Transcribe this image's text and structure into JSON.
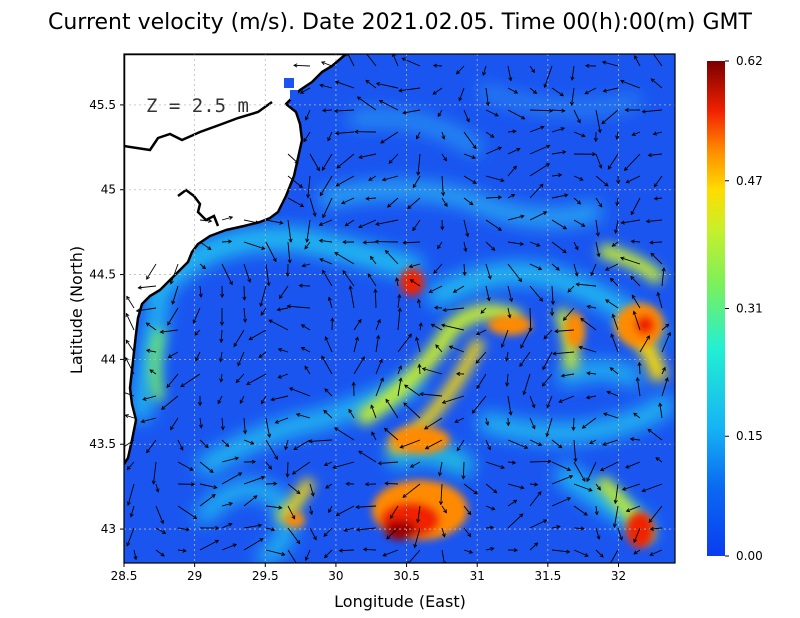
{
  "title": "Current velocity (m/s). Date 2021.02.05. Time 00(h):00(m) GMT",
  "depth_label": "Z = 2.5 m",
  "colors": {
    "sea_background": "#1a55f0",
    "land": "#ffffff",
    "coast": "#000000",
    "grid": "#cccccc",
    "arrow": "#000000",
    "colormap": [
      "#0a3cf0",
      "#16b4f4",
      "#22f0d2",
      "#c8f02a",
      "#ffdc00",
      "#ff8a00",
      "#f02000",
      "#a00000",
      "#7a0000"
    ]
  },
  "chart_data": {
    "type": "heatmap",
    "title": "Current velocity (m/s). Date 2021.02.05. Time 00(h):00(m) GMT",
    "xlabel": "Longitude (East)",
    "ylabel": "Latitude (North)",
    "xlim": [
      28.5,
      32.4
    ],
    "ylim": [
      42.8,
      45.8
    ],
    "x_ticks": [
      "28.5",
      "29",
      "29.5",
      "30",
      "30.5",
      "31",
      "31.5",
      "32"
    ],
    "y_ticks": [
      "43",
      "43.5",
      "44",
      "44.5",
      "45",
      "45.5"
    ],
    "grid": true,
    "colorbar": {
      "label": "",
      "min": 0.0,
      "max": 0.62,
      "ticks": [
        "0.00",
        "0.15",
        "0.31",
        "0.47",
        "0.62"
      ]
    },
    "hotspots": [
      {
        "lon": 30.6,
        "lat": 43.05,
        "speed": 0.6
      },
      {
        "lon": 30.5,
        "lat": 43.5,
        "speed": 0.5
      },
      {
        "lon": 30.5,
        "lat": 44.47,
        "speed": 0.55
      },
      {
        "lon": 31.2,
        "lat": 44.2,
        "speed": 0.5
      },
      {
        "lon": 31.65,
        "lat": 44.15,
        "speed": 0.5
      },
      {
        "lon": 32.1,
        "lat": 44.2,
        "speed": 0.5
      },
      {
        "lon": 32.1,
        "lat": 43.0,
        "speed": 0.5
      },
      {
        "lon": 29.6,
        "lat": 43.05,
        "speed": 0.4
      },
      {
        "lon": 28.7,
        "lat": 44.0,
        "speed": 0.35
      }
    ]
  }
}
